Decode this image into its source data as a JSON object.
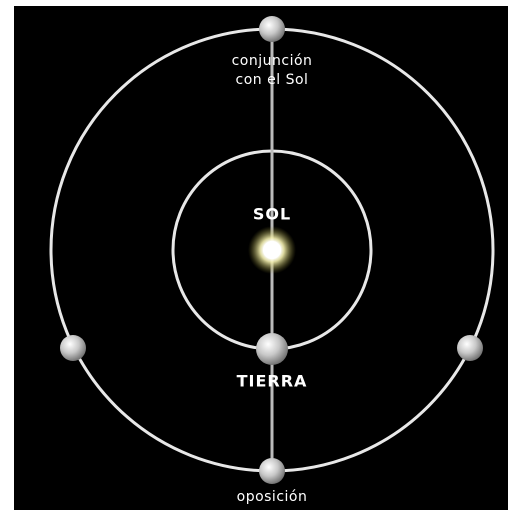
{
  "labels": {
    "conjunction": [
      "conjunción",
      "con el Sol"
    ],
    "sun": "SOL",
    "earth": "TIERRA",
    "opposition": "oposición"
  }
}
